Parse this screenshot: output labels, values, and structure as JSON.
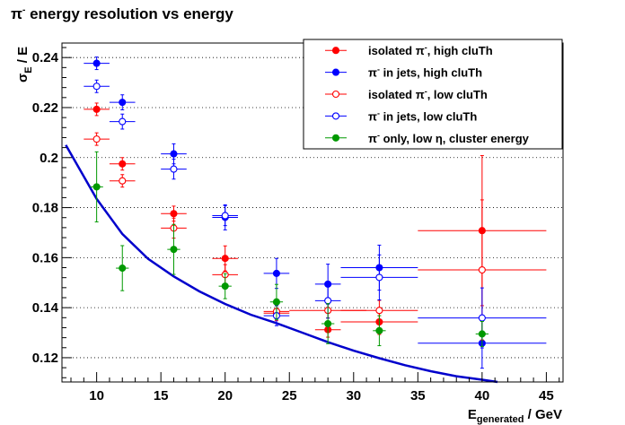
{
  "chart_data": {
    "type": "scatter",
    "title": {
      "main": "π",
      "sup": "-",
      "rest": " energy resolution vs energy"
    },
    "xlabel": {
      "main": "E",
      "sub": "generated",
      "rest": " / GeV"
    },
    "ylabel": {
      "main": "σ",
      "sub": "E",
      "rest": " / E"
    },
    "xlim": [
      7.3,
      46.3
    ],
    "ylim": [
      0.1103,
      0.2458
    ],
    "x_ticks": [
      10,
      15,
      20,
      25,
      30,
      35,
      40,
      45
    ],
    "y_ticks": [
      0.12,
      0.14,
      0.16,
      0.18,
      0.2,
      0.22,
      0.24
    ],
    "y_tick_labels": [
      "0.12",
      "0.14",
      "0.16",
      "0.18",
      "0.2",
      "0.22",
      "0.24"
    ],
    "grid": "horizontal dotted",
    "legend_position": "top-right",
    "series": [
      {
        "name": "isolated π-, high cluTh",
        "label": {
          "a": "isolated π",
          "sup": "-",
          "b": ", high cluTh"
        },
        "color": "#ff0000",
        "marker": "filled-circle",
        "points": [
          {
            "x": 10,
            "y": 0.2193,
            "xerr": 1,
            "yerr": 0.0025
          },
          {
            "x": 12,
            "y": 0.1975,
            "xerr": 1,
            "yerr": 0.0025
          },
          {
            "x": 16,
            "y": 0.1776,
            "xerr": 1,
            "yerr": 0.003
          },
          {
            "x": 20,
            "y": 0.1597,
            "xerr": 1,
            "yerr": 0.005
          },
          {
            "x": 24,
            "y": 0.1378,
            "xerr": 1,
            "yerr": 0.003
          },
          {
            "x": 28,
            "y": 0.1312,
            "xerr": 1,
            "yerr": 0.003
          },
          {
            "x": 32,
            "y": 0.1343,
            "xerr": 3,
            "yerr": 0.005
          },
          {
            "x": 40,
            "y": 0.1708,
            "xerr": 5,
            "yerr": 0.03
          }
        ]
      },
      {
        "name": "π- in jets, high cluTh",
        "label": {
          "a": "π",
          "sup": "-",
          "b": " in jets, high cluTh"
        },
        "color": "#0000ff",
        "marker": "filled-circle",
        "points": [
          {
            "x": 10,
            "y": 0.2377,
            "xerr": 1,
            "yerr": 0.0025
          },
          {
            "x": 12,
            "y": 0.2221,
            "xerr": 1,
            "yerr": 0.003
          },
          {
            "x": 16,
            "y": 0.2015,
            "xerr": 1,
            "yerr": 0.004
          },
          {
            "x": 20,
            "y": 0.1761,
            "xerr": 1,
            "yerr": 0.005
          },
          {
            "x": 24,
            "y": 0.1537,
            "xerr": 1,
            "yerr": 0.006
          },
          {
            "x": 28,
            "y": 0.1494,
            "xerr": 1,
            "yerr": 0.008
          },
          {
            "x": 32,
            "y": 0.156,
            "xerr": 3,
            "yerr": 0.009
          },
          {
            "x": 40,
            "y": 0.1258,
            "xerr": 5,
            "yerr": 0.01
          }
        ]
      },
      {
        "name": "isolated π-, low cluTh",
        "label": {
          "a": "isolated π",
          "sup": "-",
          "b": ", low cluTh"
        },
        "color": "#ff0000",
        "marker": "open-circle",
        "points": [
          {
            "x": 10,
            "y": 0.2074,
            "xerr": 1,
            "yerr": 0.0025
          },
          {
            "x": 12,
            "y": 0.1907,
            "xerr": 1,
            "yerr": 0.0025
          },
          {
            "x": 16,
            "y": 0.1718,
            "xerr": 1,
            "yerr": 0.004
          },
          {
            "x": 20,
            "y": 0.1532,
            "xerr": 1,
            "yerr": 0.004
          },
          {
            "x": 24,
            "y": 0.1385,
            "xerr": 1,
            "yerr": 0.003
          },
          {
            "x": 28,
            "y": 0.1389,
            "xerr": 3,
            "yerr": 0.003
          },
          {
            "x": 32,
            "y": 0.1389,
            "xerr": 3,
            "yerr": 0.004
          },
          {
            "x": 40,
            "y": 0.1551,
            "xerr": 5,
            "yerr": 0.028
          }
        ]
      },
      {
        "name": "π- in jets, low cluTh",
        "label": {
          "a": "π",
          "sup": "-",
          "b": " in jets, low cluTh"
        },
        "color": "#0000ff",
        "marker": "open-circle",
        "points": [
          {
            "x": 10,
            "y": 0.2285,
            "xerr": 1,
            "yerr": 0.0025
          },
          {
            "x": 12,
            "y": 0.2144,
            "xerr": 1,
            "yerr": 0.003
          },
          {
            "x": 16,
            "y": 0.1954,
            "xerr": 1,
            "yerr": 0.004
          },
          {
            "x": 20,
            "y": 0.1768,
            "xerr": 1,
            "yerr": 0.004
          },
          {
            "x": 24,
            "y": 0.1368,
            "xerr": 1,
            "yerr": 0.004
          },
          {
            "x": 28,
            "y": 0.1428,
            "xerr": 1,
            "yerr": 0.007
          },
          {
            "x": 32,
            "y": 0.1521,
            "xerr": 3,
            "yerr": 0.009
          },
          {
            "x": 40,
            "y": 0.1359,
            "xerr": 5,
            "yerr": 0.012
          }
        ]
      },
      {
        "name": "π- only, low η, cluster energy",
        "label": {
          "a": "π",
          "sup": "-",
          "b": " only, low η, cluster energy"
        },
        "color": "#009900",
        "marker": "filled-circle",
        "points": [
          {
            "x": 10,
            "y": 0.1883,
            "xerr": 0.5,
            "yerr": 0.014
          },
          {
            "x": 12,
            "y": 0.1558,
            "xerr": 0.5,
            "yerr": 0.009
          },
          {
            "x": 16,
            "y": 0.1633,
            "xerr": 0.5,
            "yerr": 0.01
          },
          {
            "x": 20,
            "y": 0.1486,
            "xerr": 0.5,
            "yerr": 0.005
          },
          {
            "x": 24,
            "y": 0.1423,
            "xerr": 0.5,
            "yerr": 0.007
          },
          {
            "x": 28,
            "y": 0.1336,
            "xerr": 0.5,
            "yerr": 0.008
          },
          {
            "x": 32,
            "y": 0.1308,
            "xerr": 0.5,
            "yerr": 0.006
          },
          {
            "x": 40,
            "y": 0.1295,
            "xerr": 0.5,
            "yerr": 0.005
          }
        ]
      }
    ],
    "fit_curve": {
      "color": "#0000cc",
      "points": [
        [
          7.6,
          0.205
        ],
        [
          9,
          0.1925
        ],
        [
          10,
          0.1835
        ],
        [
          12,
          0.1695
        ],
        [
          14,
          0.1595
        ],
        [
          16,
          0.1525
        ],
        [
          18,
          0.1465
        ],
        [
          20,
          0.1415
        ],
        [
          22,
          0.1372
        ],
        [
          24,
          0.1338
        ],
        [
          26,
          0.13
        ],
        [
          28,
          0.1262
        ],
        [
          30,
          0.1228
        ],
        [
          32,
          0.1198
        ],
        [
          34,
          0.117
        ],
        [
          36,
          0.1146
        ],
        [
          38,
          0.1126
        ],
        [
          40,
          0.1112
        ],
        [
          41.2,
          0.1103
        ]
      ]
    }
  }
}
